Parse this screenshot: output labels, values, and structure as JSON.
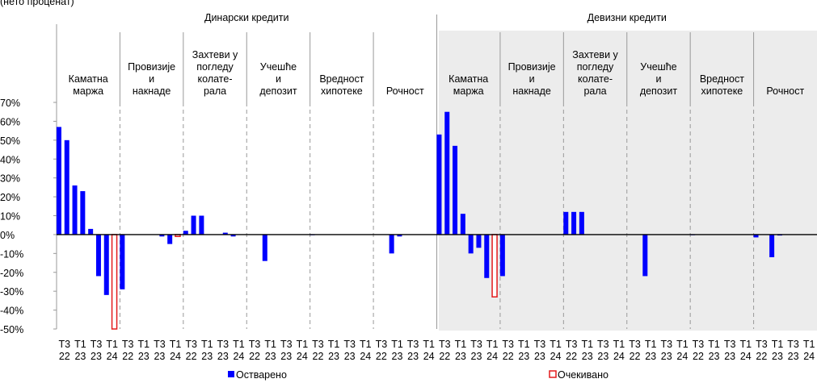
{
  "chart_data": {
    "type": "bar",
    "title": "(нето проценат)",
    "sections": [
      "Динарски кредити",
      "Девизни кредити"
    ],
    "groups": [
      "Каматна\nмаржа",
      "Провизије\nи\nнакнаде",
      "Захтеви у\nпогледу\nколате-\nрала",
      "Учешће\nи\nдепозит",
      "Вредност\nхипотеке",
      "Рочност",
      "Каматна\nмаржа",
      "Провизије\nи\nнакнаде",
      "Захтеви у\nпогледу\nколате-\nрала",
      "Учешће\nи\nдепозит",
      "Вредност\nхипотеке",
      "Рочност"
    ],
    "categories": [
      "Т3 22",
      null,
      "Т1 23",
      null,
      "Т3 23",
      null,
      "Т1 24",
      null,
      "Т3 22",
      null,
      "Т1 23",
      null,
      "Т3 23",
      null,
      "Т1 24",
      null,
      "Т3 22",
      null,
      "Т1 23",
      null,
      "Т3 23",
      null,
      "Т1 24",
      null,
      "Т3 22",
      null,
      "Т1 23",
      null,
      "Т3 23",
      null,
      "Т1 24",
      null,
      "Т3 22",
      null,
      "Т1 23",
      null,
      "Т3 23",
      null,
      "Т1 24",
      null,
      "Т3 22",
      null,
      "Т1 23",
      null,
      "Т3 23",
      null,
      "Т1 24",
      null,
      "Т3 22",
      null,
      "Т1 23",
      null,
      "Т3 23",
      null,
      "Т1 24",
      null,
      "Т3 22",
      null,
      "Т1 23",
      null,
      "Т3 23",
      null,
      "Т1 24",
      null,
      "Т3 22",
      null,
      "Т1 23",
      null,
      "Т3 23",
      null,
      "Т1 24",
      null,
      "Т3 22",
      null,
      "Т1 23",
      null,
      "Т3 23",
      null,
      "Т1 24",
      null,
      "Т3 22",
      null,
      "Т1 23",
      null,
      "Т3 23",
      null,
      "Т1 24",
      null,
      "Т3 22",
      null,
      "Т1 23",
      null,
      "Т3 23",
      null,
      "Т1 24",
      null
    ],
    "series": [
      {
        "name": "Остварено",
        "color": "#0000ff",
        "values": [
          57,
          50,
          26,
          23,
          3,
          -22,
          -32,
          null,
          -29,
          null,
          null,
          null,
          null,
          -1,
          -5,
          null,
          2,
          10,
          10,
          null,
          null,
          1,
          -1,
          null,
          null,
          null,
          -14,
          null,
          null,
          null,
          null,
          null,
          -0.3,
          null,
          null,
          null,
          null,
          null,
          null,
          null,
          null,
          null,
          -10,
          -1,
          null,
          null,
          null,
          null,
          53,
          65,
          47,
          11,
          -10,
          -7,
          -23,
          null,
          -22,
          null,
          null,
          null,
          null,
          null,
          null,
          null,
          12,
          12,
          12,
          null,
          null,
          null,
          null,
          null,
          null,
          null,
          -22,
          null,
          null,
          null,
          null,
          null,
          -0.3,
          null,
          null,
          null,
          null,
          null,
          null,
          null,
          -1.5,
          null,
          -12,
          -0.5,
          null,
          null,
          null,
          null
        ]
      },
      {
        "name": "Очекивано",
        "color": "#e31a1c",
        "values": [
          null,
          null,
          null,
          null,
          null,
          null,
          null,
          -50,
          null,
          null,
          null,
          null,
          null,
          null,
          null,
          -1,
          null,
          null,
          null,
          null,
          null,
          null,
          null,
          null,
          null,
          null,
          null,
          null,
          null,
          null,
          null,
          null,
          null,
          null,
          null,
          null,
          null,
          null,
          null,
          null,
          null,
          null,
          null,
          null,
          null,
          null,
          null,
          null,
          null,
          null,
          null,
          null,
          null,
          null,
          null,
          -33,
          null,
          null,
          null,
          null,
          null,
          null,
          null,
          null,
          null,
          null,
          null,
          null,
          null,
          null,
          null,
          null,
          null,
          null,
          null,
          null,
          null,
          null,
          null,
          null,
          null,
          null,
          null,
          null,
          null,
          null,
          null,
          null,
          null,
          null,
          null,
          null,
          null,
          null,
          null,
          null
        ]
      }
    ],
    "ylim": [
      -50,
      70
    ],
    "yticks": [
      {
        "value": 70,
        "label": "70%"
      },
      {
        "value": 60,
        "label": "60%"
      },
      {
        "value": 50,
        "label": "50%"
      },
      {
        "value": 40,
        "label": "40%"
      },
      {
        "value": 30,
        "label": "30%"
      },
      {
        "value": 20,
        "label": "20%"
      },
      {
        "value": 10,
        "label": "10%"
      },
      {
        "value": 0,
        "label": "0%"
      },
      {
        "value": -10,
        "label": "-10%"
      },
      {
        "value": -20,
        "label": "-20%"
      },
      {
        "value": -30,
        "label": "-30%"
      },
      {
        "value": -40,
        "label": "-40%"
      },
      {
        "value": -50,
        "label": "-50%"
      }
    ],
    "grid": false
  }
}
